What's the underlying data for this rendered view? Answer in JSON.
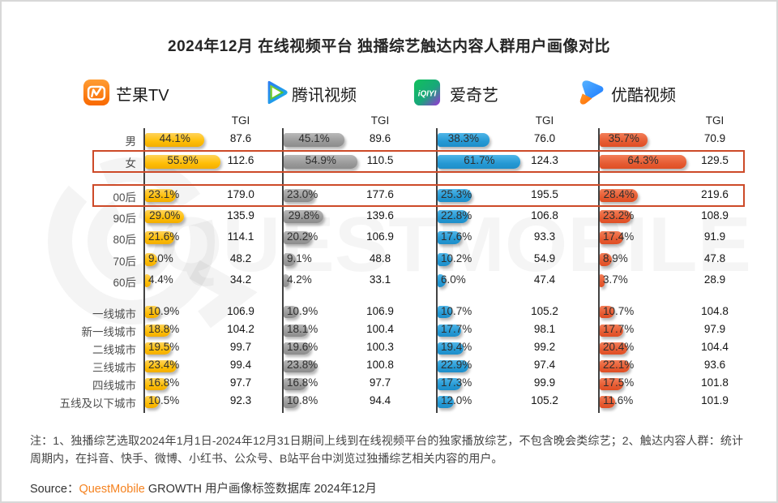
{
  "page": {
    "title": "2024年12月 在线视频平台 独播综艺触达内容人群用户画像对比"
  },
  "labels": {
    "tgi": "TGI"
  },
  "platforms": [
    {
      "name": "芒果TV",
      "color": "#FFC000"
    },
    {
      "name": "腾讯视频",
      "color": "#9A9A9A"
    },
    {
      "name": "爱奇艺",
      "color": "#2599D4",
      "logo_text": "iQIYI"
    },
    {
      "name": "优酷视频",
      "color": "#E65C33"
    }
  ],
  "chart_data": {
    "type": "bar",
    "title": "2024年12月 在线视频平台 独播综艺触达内容人群用户画像对比",
    "value_unit": "%",
    "secondary_metric": "TGI",
    "highlighted_categories": [
      "女",
      "00后"
    ],
    "categories": [
      {
        "label": "男",
        "group": "gender"
      },
      {
        "label": "女",
        "group": "gender"
      },
      {
        "label": "00后",
        "group": "age"
      },
      {
        "label": "90后",
        "group": "age"
      },
      {
        "label": "80后",
        "group": "age"
      },
      {
        "label": "70后",
        "group": "age"
      },
      {
        "label": "60后",
        "group": "age"
      },
      {
        "label": "一线城市",
        "group": "city"
      },
      {
        "label": "新一线城市",
        "group": "city"
      },
      {
        "label": "二线城市",
        "group": "city"
      },
      {
        "label": "三线城市",
        "group": "city"
      },
      {
        "label": "四线城市",
        "group": "city"
      },
      {
        "label": "五线及以下城市",
        "group": "city"
      }
    ],
    "series": [
      {
        "name": "芒果TV",
        "pct": [
          44.1,
          55.9,
          23.1,
          29.0,
          21.6,
          9.0,
          4.4,
          10.9,
          18.8,
          19.5,
          23.4,
          16.8,
          10.5
        ],
        "tgi": [
          87.6,
          112.6,
          179.0,
          135.9,
          114.1,
          48.2,
          34.2,
          106.9,
          104.2,
          99.7,
          99.4,
          97.7,
          92.3
        ]
      },
      {
        "name": "腾讯视频",
        "pct": [
          45.1,
          54.9,
          23.0,
          29.8,
          20.2,
          9.1,
          4.2,
          10.9,
          18.1,
          19.6,
          23.8,
          16.8,
          10.8
        ],
        "tgi": [
          89.6,
          110.5,
          177.6,
          139.6,
          106.9,
          48.8,
          33.1,
          106.9,
          100.4,
          100.3,
          100.8,
          97.7,
          94.4
        ]
      },
      {
        "name": "爱奇艺",
        "pct": [
          38.3,
          61.7,
          25.3,
          22.8,
          17.6,
          10.2,
          6.0,
          10.7,
          17.7,
          19.4,
          22.9,
          17.3,
          12.0
        ],
        "tgi": [
          76.0,
          124.3,
          195.5,
          106.8,
          93.3,
          54.9,
          47.4,
          105.2,
          98.1,
          99.2,
          97.4,
          99.9,
          105.2
        ]
      },
      {
        "name": "优酷视频",
        "pct": [
          35.7,
          64.3,
          28.4,
          23.2,
          17.4,
          8.9,
          3.7,
          10.7,
          17.7,
          20.4,
          22.1,
          17.5,
          11.6
        ],
        "tgi": [
          70.9,
          129.5,
          219.6,
          108.9,
          91.9,
          47.8,
          28.9,
          104.8,
          97.9,
          104.4,
          93.6,
          101.8,
          101.9
        ]
      }
    ]
  },
  "watermark": "QUESTMOBILE",
  "notes": "注：1、独播综艺选取2024年1月1日-2024年12月31日期间上线到在线视频平台的独家播放综艺，不包含晚会类综艺；2、触达内容人群：统计周期内，在抖音、快手、微博、小红书、公众号、B站平台中浏览过独播综艺相关内容的用户。",
  "source": {
    "prefix": "Source：",
    "brand": "QuestMobile",
    "suffix": " GROWTH 用户画像标签数据库 2024年12月"
  }
}
